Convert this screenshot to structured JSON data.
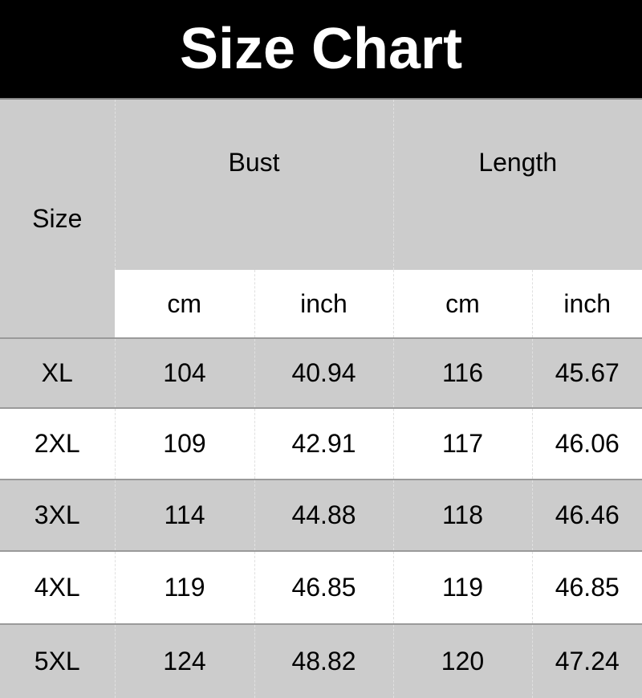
{
  "title": "Size Chart",
  "headers": {
    "size": "Size",
    "bust": "Bust",
    "length": "Length",
    "cm": "cm",
    "inch": "inch"
  },
  "rows": [
    {
      "size": "XL",
      "bust_cm": "104",
      "bust_inch": "40.94",
      "length_cm": "116",
      "length_inch": "45.67"
    },
    {
      "size": "2XL",
      "bust_cm": "109",
      "bust_inch": "42.91",
      "length_cm": "117",
      "length_inch": "46.06"
    },
    {
      "size": "3XL",
      "bust_cm": "114",
      "bust_inch": "44.88",
      "length_cm": "118",
      "length_inch": "46.46"
    },
    {
      "size": "4XL",
      "bust_cm": "119",
      "bust_inch": "46.85",
      "length_cm": "119",
      "length_inch": "46.85"
    },
    {
      "size": "5XL",
      "bust_cm": "124",
      "bust_inch": "48.82",
      "length_cm": "120",
      "length_inch": "47.24"
    }
  ],
  "colors": {
    "header_bg": "#000000",
    "gray_row": "#cccccc",
    "white_row": "#ffffff"
  }
}
